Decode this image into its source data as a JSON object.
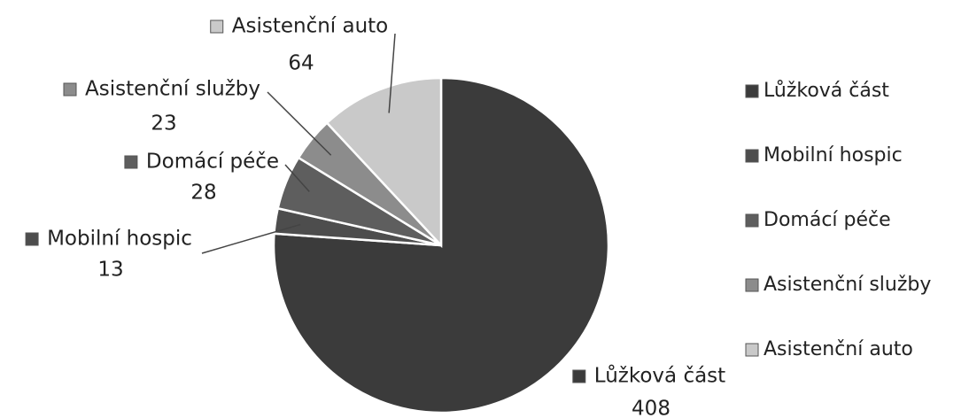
{
  "chart_data": {
    "type": "pie",
    "categories": [
      "Lůžková část",
      "Mobilní hospic",
      "Domácí péče",
      "Asistenční služby",
      "Asistenční auto"
    ],
    "values": [
      408,
      13,
      28,
      23,
      64
    ],
    "colors": [
      "#3b3b3b",
      "#4d4d4d",
      "#5e5e5e",
      "#8c8c8c",
      "#c9c9c9"
    ],
    "legend": "right"
  }
}
